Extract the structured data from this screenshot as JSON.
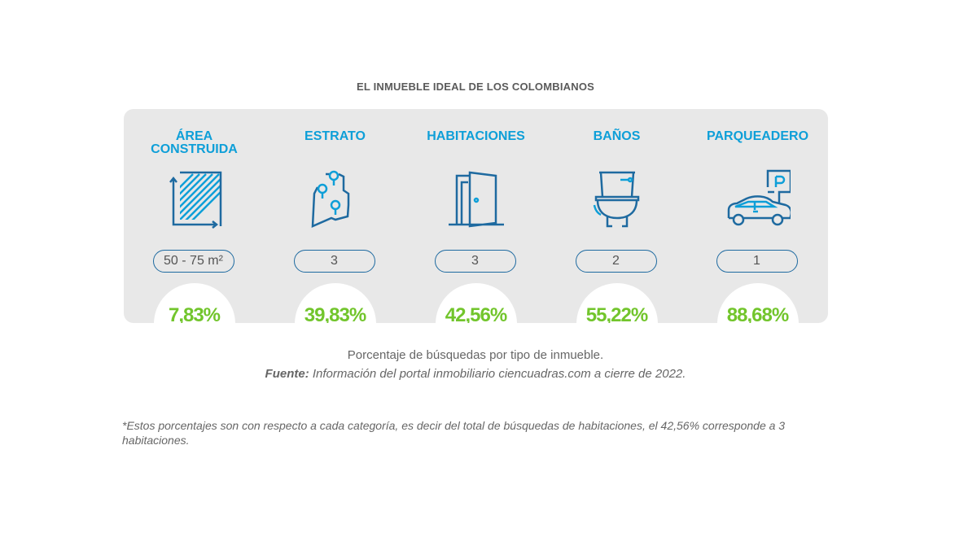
{
  "title": "EL INMUEBLE IDEAL DE LOS COLOMBIANOS",
  "categories": [
    {
      "heading": "ÁREA CONSTRUIDA",
      "icon": "area-icon",
      "value": "50 - 75 m²",
      "percent": "7,83%"
    },
    {
      "heading": "ESTRATO",
      "icon": "map-pins-icon",
      "value": "3",
      "percent": "39,83%"
    },
    {
      "heading": "HABITACIONES",
      "icon": "door-icon",
      "value": "3",
      "percent": "42,56%"
    },
    {
      "heading": "BAÑOS",
      "icon": "toilet-icon",
      "value": "2",
      "percent": "55,22%"
    },
    {
      "heading": "PARQUEADERO",
      "icon": "car-parking-icon",
      "value": "1",
      "percent": "88,68%"
    }
  ],
  "caption": "Porcentaje de búsquedas por tipo de inmueble.",
  "source_label": "Fuente:",
  "source_text": " Información del portal inmobiliario ciencuadras.com a cierre de 2022.",
  "footnote": "*Estos porcentajes son con respecto a cada categoría, es decir del total de búsquedas de habitaciones, el 42,56% corresponde a 3 habitaciones.",
  "colors": {
    "heading": "#0e9fd8",
    "percent": "#72c52c",
    "icon": "#1e6aa0",
    "panel": "#e8e8e8"
  }
}
